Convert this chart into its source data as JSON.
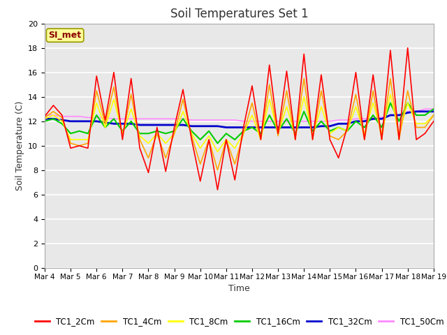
{
  "title": "Soil Temperatures Set 1",
  "xlabel": "Time",
  "ylabel": "Soil Temperature (C)",
  "ylim": [
    0,
    20
  ],
  "yticks": [
    0,
    2,
    4,
    6,
    8,
    10,
    12,
    14,
    16,
    18,
    20
  ],
  "fig_bg": "#ffffff",
  "plot_bg": "#e8e8e8",
  "annotation_text": "SI_met",
  "annotation_color": "#8b0000",
  "annotation_bg": "#ffff99",
  "annotation_edge": "#999900",
  "series_order": [
    "TC1_50Cm",
    "TC1_32Cm",
    "TC1_16Cm",
    "TC1_8Cm",
    "TC1_4Cm",
    "TC1_2Cm"
  ],
  "series": {
    "TC1_2Cm": {
      "color": "#ff0000",
      "lw": 1.2
    },
    "TC1_4Cm": {
      "color": "#ffa500",
      "lw": 1.2
    },
    "TC1_8Cm": {
      "color": "#ffff00",
      "lw": 1.2
    },
    "TC1_16Cm": {
      "color": "#00cc00",
      "lw": 1.5
    },
    "TC1_32Cm": {
      "color": "#0000cd",
      "lw": 2.0
    },
    "TC1_50Cm": {
      "color": "#ff88ff",
      "lw": 1.2
    }
  },
  "x_labels": [
    "Mar 4",
    "Mar 5",
    "Mar 6",
    "Mar 7",
    "Mar 8",
    "Mar 9",
    "Mar 10",
    "Mar 11",
    "Mar 12",
    "Mar 13",
    "Mar 14",
    "Mar 15",
    "Mar 16",
    "Mar 17",
    "Mar 18",
    "Mar 19"
  ],
  "TC1_2Cm": [
    12.4,
    13.3,
    12.5,
    9.8,
    10.0,
    9.8,
    15.7,
    12.1,
    16.0,
    10.5,
    15.5,
    9.8,
    7.8,
    11.5,
    7.9,
    11.5,
    14.6,
    10.5,
    7.1,
    10.5,
    6.4,
    10.5,
    7.2,
    11.5,
    14.9,
    10.5,
    16.6,
    11.0,
    16.1,
    10.5,
    17.5,
    10.5,
    15.8,
    10.5,
    9.0,
    11.5,
    16.0,
    10.5,
    15.8,
    10.5,
    17.8,
    10.5,
    18.0,
    10.5,
    11.0,
    12.0
  ],
  "TC1_4Cm": [
    12.3,
    12.8,
    12.3,
    10.2,
    10.0,
    10.2,
    14.5,
    11.8,
    14.8,
    10.8,
    14.2,
    10.5,
    9.0,
    11.0,
    9.0,
    11.0,
    13.8,
    10.8,
    8.5,
    10.5,
    8.0,
    10.5,
    8.5,
    11.0,
    13.5,
    10.5,
    15.0,
    10.8,
    14.5,
    10.5,
    15.5,
    10.5,
    14.5,
    10.8,
    10.5,
    11.2,
    14.2,
    10.5,
    14.5,
    10.5,
    15.5,
    10.5,
    14.5,
    11.5,
    11.5,
    12.5
  ],
  "TC1_8Cm": [
    12.2,
    12.5,
    12.0,
    10.5,
    10.5,
    10.5,
    13.5,
    11.5,
    13.8,
    11.0,
    13.0,
    10.8,
    10.2,
    11.0,
    10.2,
    11.0,
    12.8,
    11.0,
    9.8,
    10.8,
    9.5,
    10.5,
    9.8,
    11.0,
    12.5,
    10.5,
    13.8,
    11.0,
    13.2,
    10.8,
    14.0,
    10.8,
    13.2,
    11.0,
    11.5,
    11.2,
    13.2,
    11.0,
    13.5,
    11.0,
    14.2,
    11.0,
    13.5,
    11.8,
    11.8,
    12.5
  ],
  "TC1_16Cm": [
    12.0,
    12.2,
    11.8,
    11.0,
    11.2,
    11.0,
    12.5,
    11.5,
    12.2,
    11.2,
    12.0,
    11.0,
    11.0,
    11.2,
    11.0,
    11.2,
    12.2,
    11.2,
    10.5,
    11.2,
    10.2,
    11.0,
    10.5,
    11.2,
    11.5,
    11.0,
    12.5,
    11.2,
    12.2,
    11.0,
    12.8,
    11.2,
    12.0,
    11.2,
    11.5,
    11.2,
    12.0,
    11.5,
    12.5,
    11.5,
    13.5,
    12.0,
    13.5,
    12.5,
    12.5,
    13.0
  ],
  "TC1_32Cm": [
    12.2,
    12.2,
    12.1,
    12.0,
    12.0,
    12.0,
    12.0,
    11.9,
    11.8,
    11.8,
    11.8,
    11.7,
    11.7,
    11.7,
    11.7,
    11.7,
    11.7,
    11.6,
    11.6,
    11.6,
    11.6,
    11.5,
    11.5,
    11.5,
    11.5,
    11.5,
    11.5,
    11.5,
    11.5,
    11.5,
    11.5,
    11.5,
    11.6,
    11.6,
    11.8,
    11.8,
    12.0,
    12.0,
    12.2,
    12.2,
    12.5,
    12.5,
    12.7,
    12.8,
    12.8,
    12.8
  ],
  "TC1_50Cm": [
    12.5,
    12.5,
    12.4,
    12.4,
    12.4,
    12.3,
    12.3,
    12.3,
    12.2,
    12.2,
    12.2,
    12.2,
    12.2,
    12.2,
    12.2,
    12.2,
    12.2,
    12.1,
    12.1,
    12.1,
    12.1,
    12.1,
    12.1,
    12.0,
    12.0,
    12.0,
    12.0,
    12.0,
    12.0,
    12.0,
    12.0,
    12.0,
    12.0,
    12.0,
    12.1,
    12.1,
    12.2,
    12.2,
    12.3,
    12.3,
    12.5,
    12.5,
    12.8,
    12.8,
    13.0,
    13.0
  ]
}
